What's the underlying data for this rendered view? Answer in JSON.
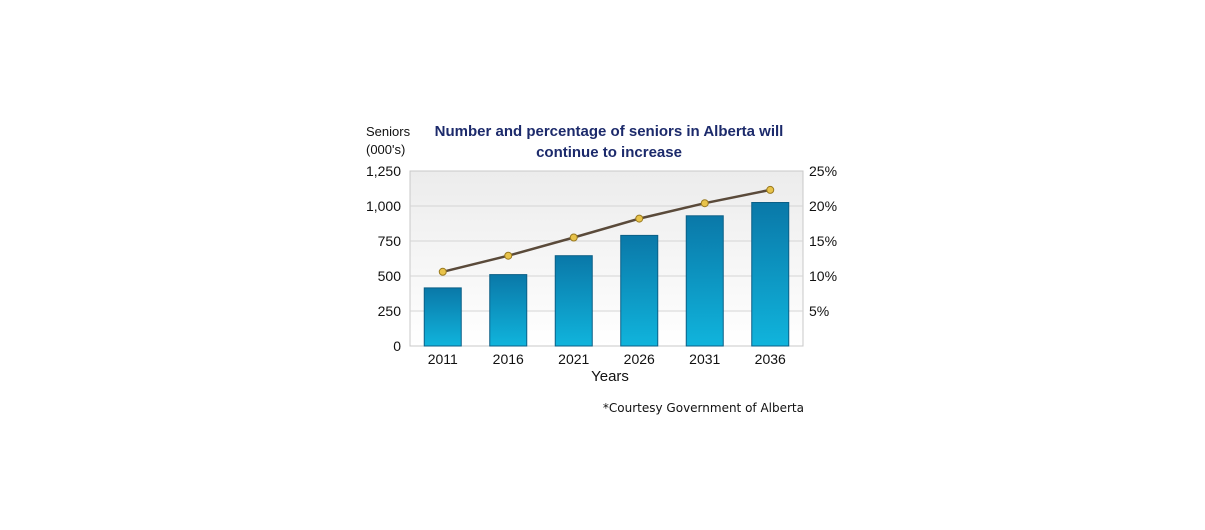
{
  "chart_data": {
    "type": "bar",
    "title_lines": [
      "Number and percentage of seniors in Alberta will",
      "continue to increase"
    ],
    "ylabel_lines": [
      "Seniors",
      "(000's)"
    ],
    "xlabel": "Years",
    "categories": [
      "2011",
      "2016",
      "2021",
      "2026",
      "2031",
      "2036"
    ],
    "series": [
      {
        "type": "bar",
        "axis": "left",
        "values": [
          415,
          510,
          645,
          790,
          930,
          1025
        ],
        "color": "#0a8fbf"
      },
      {
        "type": "line",
        "axis": "right",
        "values": [
          10.6,
          12.9,
          15.5,
          18.2,
          20.4,
          22.3
        ],
        "color": "#5a4a3a",
        "marker_color": "#e8c34a"
      }
    ],
    "left_axis": {
      "ylim": [
        0,
        1250
      ],
      "ticks": [
        "1,250",
        "1,000",
        "750",
        "500",
        "250",
        "0"
      ],
      "tick_values": [
        1250,
        1000,
        750,
        500,
        250,
        0
      ]
    },
    "right_axis": {
      "ylim": [
        0,
        25
      ],
      "ticks": [
        "25%",
        "20%",
        "15%",
        "10%",
        "5%"
      ],
      "tick_values": [
        25,
        20,
        15,
        10,
        5
      ]
    },
    "grid": true,
    "footnote": "*Courtesy Government of Alberta"
  }
}
